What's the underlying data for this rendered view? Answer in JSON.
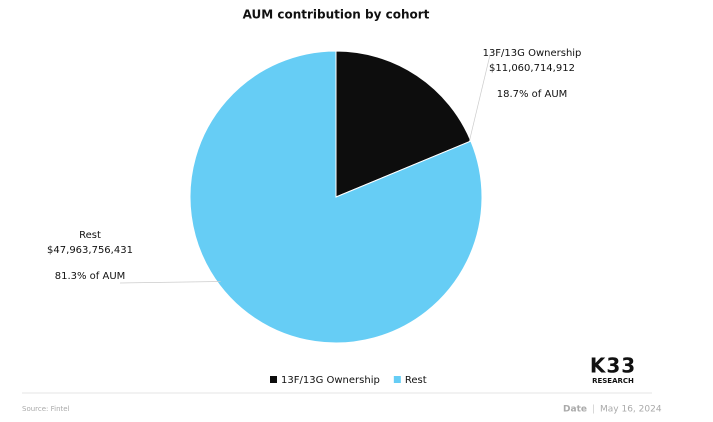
{
  "chart_data": {
    "type": "pie",
    "title": "AUM contribution by cohort",
    "categories": [
      "13F/13G Ownership",
      "Rest"
    ],
    "values": [
      11060714912,
      47963756431
    ],
    "value_labels": [
      "$11,060,714,912",
      "$47,963,756,431"
    ],
    "percent_labels": [
      "18.7% of AUM",
      "81.3% of AUM"
    ],
    "colors": [
      "#0d0d0d",
      "#66cdf5"
    ],
    "legend": "bottom"
  },
  "footer": {
    "source": "Source: Fintel",
    "date_label": "Date",
    "date": "May 16, 2024",
    "logo": "K33",
    "logo_sub": "RESEARCH"
  }
}
